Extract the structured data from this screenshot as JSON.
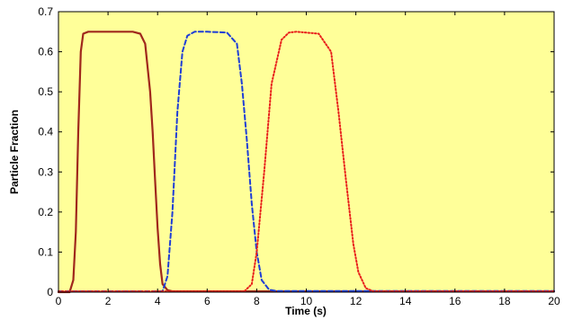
{
  "chart_data": {
    "type": "line",
    "title": "",
    "xlabel": "Time (s)",
    "ylabel": "Particle Fraction",
    "xlim": [
      0,
      20
    ],
    "ylim": [
      0,
      0.7
    ],
    "xticks": [
      "0",
      "2",
      "4",
      "6",
      "8",
      "10",
      "12",
      "14",
      "16",
      "18",
      "20"
    ],
    "yticks": [
      "0",
      "0.1",
      "0.2",
      "0.3",
      "0.4",
      "0.5",
      "0.6",
      "0.7"
    ],
    "grid": false,
    "legend": "none",
    "background_color": "#ffff99",
    "series": [
      {
        "style": "solid",
        "color": "#a0281c",
        "x": [
          0,
          0.45,
          0.6,
          0.7,
          0.8,
          0.9,
          1.0,
          1.2,
          2.0,
          3.0,
          3.3,
          3.5,
          3.7,
          3.8,
          3.9,
          4.0,
          4.1,
          4.2,
          4.4,
          4.6,
          6.0,
          20.0
        ],
        "y": [
          0,
          0,
          0.03,
          0.15,
          0.4,
          0.6,
          0.645,
          0.65,
          0.65,
          0.65,
          0.645,
          0.62,
          0.5,
          0.4,
          0.28,
          0.16,
          0.07,
          0.02,
          0.005,
          0.002,
          0.002,
          0.002
        ]
      },
      {
        "style": "dashed",
        "color": "#1f3ed6",
        "x": [
          0,
          4.2,
          4.4,
          4.6,
          4.8,
          5.0,
          5.2,
          5.5,
          6.0,
          6.8,
          7.2,
          7.4,
          7.6,
          7.8,
          8.0,
          8.2,
          8.5,
          8.8,
          10.0,
          20.0
        ],
        "y": [
          0.002,
          0.002,
          0.04,
          0.2,
          0.45,
          0.6,
          0.64,
          0.65,
          0.65,
          0.648,
          0.62,
          0.52,
          0.38,
          0.22,
          0.1,
          0.03,
          0.006,
          0.003,
          0.003,
          0.003
        ]
      },
      {
        "style": "dotted",
        "color": "#e8201c",
        "x": [
          0,
          7.5,
          7.8,
          8.0,
          8.3,
          8.6,
          9.0,
          9.3,
          9.6,
          10.5,
          11.0,
          11.3,
          11.6,
          11.9,
          12.1,
          12.4,
          12.7,
          20.0
        ],
        "y": [
          0.002,
          0.002,
          0.02,
          0.1,
          0.3,
          0.52,
          0.63,
          0.648,
          0.65,
          0.645,
          0.6,
          0.45,
          0.28,
          0.12,
          0.05,
          0.01,
          0.002,
          0.002
        ]
      }
    ]
  }
}
